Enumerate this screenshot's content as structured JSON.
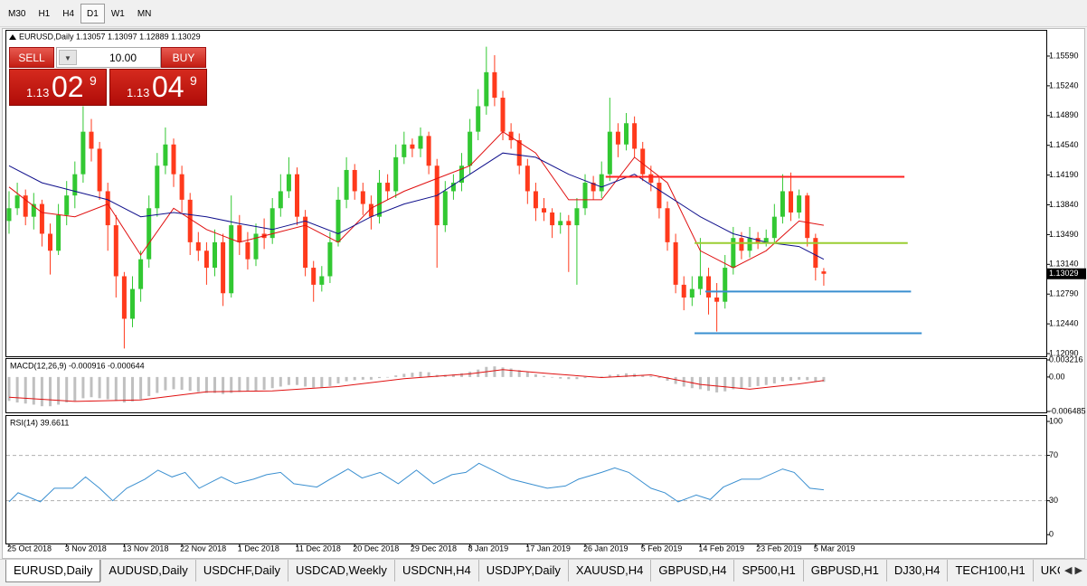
{
  "toolbar": {
    "timeframes": [
      "M30",
      "H1",
      "H4",
      "D1",
      "W1",
      "MN"
    ],
    "active": "D1"
  },
  "trade_panel": {
    "sell": "SELL",
    "buy": "BUY",
    "lots": "10.00",
    "bid": {
      "big": "1.13",
      "pips": "02",
      "point": "9"
    },
    "ask": {
      "big": "1.13",
      "pips": "04",
      "point": "9"
    }
  },
  "tabs": {
    "items": [
      "EURUSD,Daily",
      "AUDUSD,Daily",
      "USDCHF,Daily",
      "USDCAD,Weekly",
      "USDCNH,H4",
      "USDJPY,Daily",
      "XAUUSD,H4",
      "GBPUSD,H4",
      "SP500,H1",
      "GBPUSD,H1",
      "DJ30,H4",
      "TECH100,H1",
      "UKC"
    ],
    "active": "EURUSD,Daily"
  },
  "chart_data": [
    {
      "type": "candlestick",
      "title": "EURUSD,Daily  1.13057 1.13097 1.12889 1.13029",
      "up_color": "#32c832",
      "down_color": "#ff3a1c",
      "xlim": [
        -0.33,
        126.04
      ],
      "ylim": [
        1.12069,
        1.15877
      ],
      "grid": false,
      "yticks": [
        {
          "value": 1.1559,
          "label": "1.15590"
        },
        {
          "value": 1.1524,
          "label": "1.15240"
        },
        {
          "value": 1.1489,
          "label": "1.14890"
        },
        {
          "value": 1.1454,
          "label": "1.14540"
        },
        {
          "value": 1.1419,
          "label": "1.14190"
        },
        {
          "value": 1.1384,
          "label": "1.13840"
        },
        {
          "value": 1.1349,
          "label": "1.13490"
        },
        {
          "value": 1.1314,
          "label": "1.13140"
        },
        {
          "value": 1.1279,
          "label": "1.12790"
        },
        {
          "value": 1.1244,
          "label": "1.12440"
        },
        {
          "value": 1.1209,
          "label": "1.12090"
        }
      ],
      "xticks": [
        {
          "value": 0,
          "label": "25 Oct 2018"
        },
        {
          "value": 7,
          "label": "3 Nov 2018"
        },
        {
          "value": 14,
          "label": "13 Nov 2018"
        },
        {
          "value": 21,
          "label": "22 Nov 2018"
        },
        {
          "value": 28,
          "label": "1 Dec 2018"
        },
        {
          "value": 35,
          "label": "11 Dec 2018"
        },
        {
          "value": 42,
          "label": "20 Dec 2018"
        },
        {
          "value": 49,
          "label": "29 Dec 2018"
        },
        {
          "value": 56,
          "label": "8 Jan 2019"
        },
        {
          "value": 63,
          "label": "17 Jan 2019"
        },
        {
          "value": 70,
          "label": "26 Jan 2019"
        },
        {
          "value": 77,
          "label": "5 Feb 2019"
        },
        {
          "value": 84,
          "label": "14 Feb 2019"
        },
        {
          "value": 91,
          "label": "23 Feb 2019"
        },
        {
          "value": 98,
          "label": "5 Mar 2019"
        }
      ],
      "last_price": {
        "value": 1.13029,
        "label": "1.13029"
      },
      "ohlc": [
        [
          1.1365,
          1.14,
          1.135,
          1.138
        ],
        [
          1.138,
          1.141,
          1.1372,
          1.1395
        ],
        [
          1.1395,
          1.1402,
          1.136,
          1.137
        ],
        [
          1.137,
          1.1398,
          1.1355,
          1.1385
        ],
        [
          1.1385,
          1.139,
          1.1335,
          1.135
        ],
        [
          1.135,
          1.1362,
          1.1302,
          1.133
        ],
        [
          1.133,
          1.1385,
          1.1325,
          1.1372
        ],
        [
          1.1372,
          1.1412,
          1.136,
          1.1395
        ],
        [
          1.1395,
          1.1435,
          1.138,
          1.142
        ],
        [
          1.142,
          1.15,
          1.141,
          1.147
        ],
        [
          1.147,
          1.1485,
          1.1435,
          1.145
        ],
        [
          1.145,
          1.1458,
          1.139,
          1.14
        ],
        [
          1.14,
          1.141,
          1.133,
          1.136
        ],
        [
          1.136,
          1.1372,
          1.1275,
          1.13
        ],
        [
          1.13,
          1.1305,
          1.1215,
          1.125
        ],
        [
          1.125,
          1.13,
          1.124,
          1.1285
        ],
        [
          1.1285,
          1.133,
          1.127,
          1.132
        ],
        [
          1.132,
          1.1395,
          1.131,
          1.138
        ],
        [
          1.138,
          1.1445,
          1.137,
          1.143
        ],
        [
          1.143,
          1.1475,
          1.142,
          1.1455
        ],
        [
          1.1455,
          1.1462,
          1.1405,
          1.142
        ],
        [
          1.142,
          1.143,
          1.1375,
          1.139
        ],
        [
          1.139,
          1.1398,
          1.1325,
          1.134
        ],
        [
          1.134,
          1.1352,
          1.1318,
          1.133
        ],
        [
          1.133,
          1.134,
          1.129,
          1.131
        ],
        [
          1.131,
          1.1355,
          1.13,
          1.134
        ],
        [
          1.134,
          1.135,
          1.1265,
          1.128
        ],
        [
          1.128,
          1.1395,
          1.1275,
          1.136
        ],
        [
          1.136,
          1.1372,
          1.1325,
          1.134
        ],
        [
          1.134,
          1.1352,
          1.1308,
          1.132
        ],
        [
          1.132,
          1.1362,
          1.1312,
          1.135
        ],
        [
          1.135,
          1.1368,
          1.1332,
          1.1345
        ],
        [
          1.1345,
          1.1392,
          1.1338,
          1.138
        ],
        [
          1.138,
          1.142,
          1.137,
          1.14
        ],
        [
          1.14,
          1.144,
          1.1392,
          1.142
        ],
        [
          1.142,
          1.1428,
          1.136,
          1.137
        ],
        [
          1.137,
          1.1378,
          1.13,
          1.131
        ],
        [
          1.131,
          1.1318,
          1.127,
          1.129
        ],
        [
          1.129,
          1.1312,
          1.1282,
          1.13
        ],
        [
          1.13,
          1.1352,
          1.1292,
          1.134
        ],
        [
          1.134,
          1.1405,
          1.1335,
          1.139
        ],
        [
          1.139,
          1.144,
          1.138,
          1.1425
        ],
        [
          1.1425,
          1.1432,
          1.139,
          1.14
        ],
        [
          1.14,
          1.141,
          1.1372,
          1.1385
        ],
        [
          1.1385,
          1.1395,
          1.1355,
          1.137
        ],
        [
          1.137,
          1.1425,
          1.1362,
          1.141
        ],
        [
          1.141,
          1.142,
          1.139,
          1.14
        ],
        [
          1.14,
          1.1455,
          1.1392,
          1.144
        ],
        [
          1.144,
          1.147,
          1.1432,
          1.1455
        ],
        [
          1.1455,
          1.1462,
          1.144,
          1.145
        ],
        [
          1.145,
          1.1475,
          1.144,
          1.1465
        ],
        [
          1.1465,
          1.147,
          1.142,
          1.143
        ],
        [
          1.143,
          1.1438,
          1.131,
          1.136
        ],
        [
          1.136,
          1.1412,
          1.1352,
          1.14
        ],
        [
          1.14,
          1.142,
          1.139,
          1.141
        ],
        [
          1.141,
          1.1445,
          1.14,
          1.143
        ],
        [
          1.143,
          1.1485,
          1.142,
          1.147
        ],
        [
          1.147,
          1.152,
          1.146,
          1.15
        ],
        [
          1.15,
          1.157,
          1.149,
          1.154
        ],
        [
          1.154,
          1.156,
          1.15,
          1.151
        ],
        [
          1.151,
          1.1518,
          1.146,
          1.147
        ],
        [
          1.147,
          1.148,
          1.145,
          1.146
        ],
        [
          1.146,
          1.1468,
          1.142,
          1.143
        ],
        [
          1.143,
          1.1438,
          1.1385,
          1.14
        ],
        [
          1.14,
          1.141,
          1.1365,
          1.138
        ],
        [
          1.138,
          1.1392,
          1.1365,
          1.1375
        ],
        [
          1.1375,
          1.138,
          1.1345,
          1.136
        ],
        [
          1.136,
          1.1375,
          1.135,
          1.1365
        ],
        [
          1.1365,
          1.1372,
          1.1305,
          1.136
        ],
        [
          1.136,
          1.1392,
          1.129,
          1.138
        ],
        [
          1.138,
          1.142,
          1.1372,
          1.141
        ],
        [
          1.141,
          1.1418,
          1.139,
          1.14
        ],
        [
          1.14,
          1.1435,
          1.1392,
          1.142
        ],
        [
          1.142,
          1.151,
          1.1412,
          1.147
        ],
        [
          1.147,
          1.148,
          1.144,
          1.1455
        ],
        [
          1.1455,
          1.1492,
          1.1448,
          1.148
        ],
        [
          1.148,
          1.1488,
          1.144,
          1.145
        ],
        [
          1.145,
          1.1458,
          1.1412,
          1.142
        ],
        [
          1.142,
          1.143,
          1.14,
          1.141
        ],
        [
          1.141,
          1.1418,
          1.1368,
          1.138
        ],
        [
          1.138,
          1.1388,
          1.133,
          1.134
        ],
        [
          1.134,
          1.135,
          1.128,
          1.129
        ],
        [
          1.129,
          1.13,
          1.126,
          1.1275
        ],
        [
          1.1275,
          1.13,
          1.1265,
          1.1285
        ],
        [
          1.1285,
          1.1345,
          1.1278,
          1.13
        ],
        [
          1.13,
          1.131,
          1.1255,
          1.1275
        ],
        [
          1.1275,
          1.1292,
          1.1235,
          1.127
        ],
        [
          1.127,
          1.1325,
          1.1262,
          1.131
        ],
        [
          1.131,
          1.1358,
          1.1302,
          1.1345
        ],
        [
          1.1345,
          1.1352,
          1.132,
          1.133
        ],
        [
          1.133,
          1.1358,
          1.1322,
          1.1345
        ],
        [
          1.1345,
          1.1352,
          1.1332,
          1.134
        ],
        [
          1.134,
          1.1355,
          1.1335,
          1.1345
        ],
        [
          1.1345,
          1.1385,
          1.1338,
          1.137
        ],
        [
          1.137,
          1.142,
          1.1362,
          1.14
        ],
        [
          1.14,
          1.1422,
          1.1365,
          1.1375
        ],
        [
          1.1375,
          1.1402,
          1.1368,
          1.1395
        ],
        [
          1.1395,
          1.1398,
          1.1335,
          1.1345
        ],
        [
          1.1345,
          1.135,
          1.1295,
          1.131
        ],
        [
          1.13057,
          1.13097,
          1.12889,
          1.13029
        ]
      ],
      "series": [
        {
          "color": "#e01010",
          "x": [
            0,
            4,
            8,
            12,
            16,
            20,
            24,
            28,
            32,
            36,
            40,
            44,
            48,
            52,
            56,
            60,
            64,
            68,
            72,
            76,
            80,
            84,
            88,
            92,
            96,
            99
          ],
          "values": [
            1.1405,
            1.1375,
            1.137,
            1.1385,
            1.1325,
            1.138,
            1.1355,
            1.134,
            1.135,
            1.136,
            1.134,
            1.138,
            1.14,
            1.1415,
            1.143,
            1.147,
            1.1445,
            1.139,
            1.139,
            1.144,
            1.141,
            1.133,
            1.131,
            1.133,
            1.1365,
            1.136
          ]
        },
        {
          "color": "#10108c",
          "x": [
            0,
            4,
            8,
            12,
            16,
            20,
            24,
            28,
            32,
            36,
            40,
            44,
            48,
            52,
            56,
            60,
            64,
            68,
            72,
            76,
            80,
            84,
            88,
            92,
            96,
            99
          ],
          "values": [
            1.143,
            1.141,
            1.14,
            1.139,
            1.137,
            1.1375,
            1.137,
            1.1362,
            1.1355,
            1.1365,
            1.135,
            1.137,
            1.1385,
            1.1395,
            1.142,
            1.1445,
            1.144,
            1.142,
            1.1405,
            1.142,
            1.1395,
            1.137,
            1.135,
            1.134,
            1.1335,
            1.132
          ]
        }
      ],
      "levels": [
        {
          "value": 1.1417,
          "x0": 72.5,
          "x1": 108.8,
          "color": "#ff2020"
        },
        {
          "value": 1.1339,
          "x0": 83.3,
          "x1": 109.2,
          "color": "#9acd32"
        },
        {
          "value": 1.1282,
          "x0": 84.6,
          "x1": 109.6,
          "color": "#3a8fd0"
        },
        {
          "value": 1.1233,
          "x0": 83.3,
          "x1": 110.9,
          "color": "#3a8fd0"
        }
      ]
    },
    {
      "type": "macd",
      "title": "MACD(12,26,9) -0.000916 -0.000644",
      "color": "#c0c0c0",
      "xlim": [
        -0.33,
        126.04
      ],
      "ylim": [
        -0.006485,
        0.003216
      ],
      "yticks": [
        0.003216,
        {
          "value": 0,
          "label": "0.00"
        },
        -0.006485
      ],
      "values": [
        -0.0045,
        -0.0048,
        -0.005,
        -0.0052,
        -0.0055,
        -0.0055,
        -0.0052,
        -0.0048,
        -0.0045,
        -0.004,
        -0.0038,
        -0.004,
        -0.0042,
        -0.0045,
        -0.0048,
        -0.0046,
        -0.0042,
        -0.0036,
        -0.003,
        -0.0025,
        -0.0023,
        -0.0024,
        -0.0026,
        -0.0028,
        -0.003,
        -0.003,
        -0.0032,
        -0.003,
        -0.0028,
        -0.0027,
        -0.0026,
        -0.0024,
        -0.0021,
        -0.0018,
        -0.0015,
        -0.0015,
        -0.0018,
        -0.002,
        -0.002,
        -0.0017,
        -0.0012,
        -0.0008,
        -0.0006,
        -0.0005,
        -0.0005,
        -0.0002,
        -0.0001,
        0.0003,
        0.0006,
        0.0008,
        0.001,
        0.0009,
        0.0004,
        0.0004,
        0.0005,
        0.0007,
        0.001,
        0.0014,
        0.0019,
        0.002,
        0.0018,
        0.0016,
        0.0013,
        0.0009,
        0.0005,
        0.0002,
        -0.0001,
        -0.0003,
        -0.0004,
        -0.0004,
        -0.0002,
        -0.0001,
        0.0001,
        0.0004,
        0.0005,
        0.0007,
        0.0006,
        0.0004,
        0.0002,
        -0.0002,
        -0.0007,
        -0.0013,
        -0.0018,
        -0.0021,
        -0.0023,
        -0.0026,
        -0.0029,
        -0.0027,
        -0.0023,
        -0.0021,
        -0.0019,
        -0.0017,
        -0.0015,
        -0.0012,
        -0.0008,
        -0.0007,
        -0.0005,
        -0.0006,
        -0.0008,
        -0.000916
      ],
      "series": [
        {
          "color": "#e01010",
          "x": [
            0,
            8,
            16,
            24,
            32,
            40,
            48,
            56,
            60,
            66,
            72,
            78,
            84,
            90,
            96,
            99
          ],
          "values": [
            -0.0038,
            -0.0046,
            -0.0043,
            -0.0028,
            -0.0026,
            -0.0018,
            -0.0003,
            0.0006,
            0.0014,
            0.0006,
            -0.0001,
            0.0004,
            -0.0014,
            -0.0023,
            -0.0013,
            -0.000644
          ]
        }
      ]
    },
    {
      "type": "line",
      "title": "RSI(14) 39.6611",
      "xlim": [
        -0.33,
        126.04
      ],
      "ylim": [
        -7,
        104
      ],
      "yticks": [
        100,
        70,
        30,
        0
      ],
      "levels": [
        70,
        30
      ],
      "series": [
        {
          "color": "#3a8fd0",
          "x": [
            0,
            1.1,
            3.8,
            5.5,
            7.7,
            9.3,
            11,
            12.6,
            14.3,
            16.5,
            18.1,
            19.8,
            21.4,
            23.1,
            25.8,
            27.5,
            29.7,
            31.3,
            33,
            34.6,
            37.4,
            39,
            41.2,
            42.9,
            45.1,
            47.3,
            49.5,
            51.6,
            53.8,
            55.5,
            57.1,
            58.8,
            61,
            63.2,
            65.4,
            67.6,
            69.2,
            72,
            73.6,
            75.3,
            78,
            79.7,
            81.3,
            83.5,
            85.2,
            86.8,
            89,
            91.2,
            94,
            95.4,
            97.3,
            99
          ],
          "values": [
            29,
            37,
            29,
            41,
            41,
            51,
            41,
            30,
            41,
            49,
            57,
            51,
            55,
            41,
            51,
            45,
            49,
            53,
            55,
            45,
            42,
            49,
            58,
            50,
            55,
            45,
            57,
            45,
            53,
            55,
            63,
            57,
            49,
            45,
            41,
            43,
            49,
            55,
            59,
            55,
            41,
            37,
            29,
            35,
            31,
            42,
            49,
            49,
            58,
            55,
            41,
            39.6611
          ]
        }
      ]
    }
  ]
}
